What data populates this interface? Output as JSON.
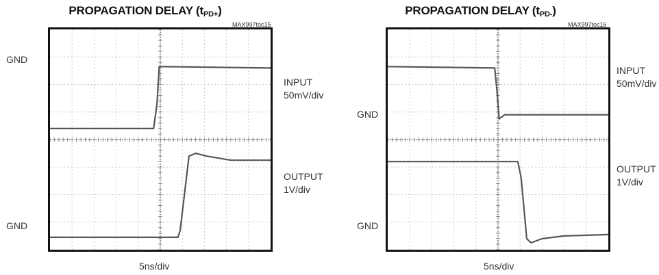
{
  "chart_data": [
    {
      "type": "line",
      "title": "PROPAGATION DELAY (t",
      "title_sub": "PD+",
      "title_close": ")",
      "code": "MAX997toc15",
      "xlabel": "5ns/div",
      "gnd_label_top": "GND",
      "gnd_label_bottom": "GND",
      "input_label": "INPUT",
      "input_scale": "50mV/div",
      "output_label": "OUTPUT",
      "output_scale": "1V/div",
      "divisions": {
        "x": 10,
        "y": 8
      },
      "xlim": [
        0,
        10
      ],
      "ylim": [
        0,
        8
      ],
      "grid": true,
      "series": [
        {
          "color": "#555555",
          "x": [
            0,
            4.7,
            4.85,
            4.95,
            10
          ],
          "y": [
            4.4,
            4.4,
            5.3,
            6.65,
            6.6
          ]
        },
        {
          "color": "#555555",
          "x": [
            0,
            5.8,
            5.9,
            6.3,
            6.6,
            7.1,
            8.2,
            10
          ],
          "y": [
            0.45,
            0.45,
            0.7,
            3.4,
            3.5,
            3.4,
            3.25,
            3.25
          ]
        }
      ]
    },
    {
      "type": "line",
      "title": "PROPAGATION DELAY (t",
      "title_sub": "PD-",
      "title_close": ")",
      "code": "MAX997toc16",
      "xlabel": "5ns/div",
      "gnd_label_top": "GND",
      "gnd_label_bottom": "GND",
      "input_label": "INPUT",
      "input_scale": "50mV/div",
      "output_label": "OUTPUT",
      "output_scale": "1V/div",
      "divisions": {
        "x": 10,
        "y": 8
      },
      "xlim": [
        0,
        10
      ],
      "ylim": [
        0,
        8
      ],
      "grid": true,
      "series": [
        {
          "color": "#555555",
          "x": [
            0,
            4.85,
            4.95,
            5.05,
            5.3,
            10
          ],
          "y": [
            6.65,
            6.6,
            5.8,
            4.75,
            4.9,
            4.9
          ]
        },
        {
          "color": "#555555",
          "x": [
            0,
            5.9,
            6.05,
            6.3,
            6.5,
            7.0,
            8.0,
            10
          ],
          "y": [
            3.2,
            3.2,
            2.6,
            0.4,
            0.25,
            0.4,
            0.5,
            0.55
          ]
        }
      ]
    }
  ]
}
